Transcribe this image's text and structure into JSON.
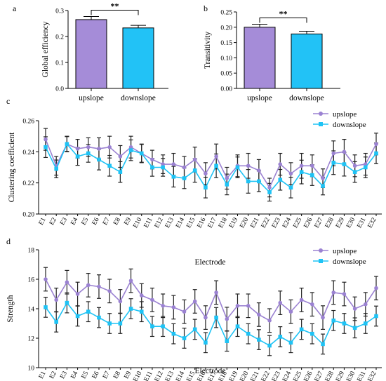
{
  "colors": {
    "upslope": "#9B82D2",
    "downslope": "#1EC3F5",
    "bar_upslope": "#A58CD8",
    "bar_downslope": "#22C2F6",
    "axis": "#000000",
    "error": "#222222"
  },
  "chart_data": [
    {
      "id": "a",
      "panel_label": "a",
      "type": "bar",
      "categories": [
        "upslope",
        "downslope"
      ],
      "values": [
        0.265,
        0.233
      ],
      "errors": [
        0.012,
        0.01
      ],
      "ylabel": "Global efficiency",
      "ylim": [
        0.0,
        0.3
      ],
      "yticks": [
        "0.0",
        "0.1",
        "0.2",
        "0.3"
      ],
      "significance": "**"
    },
    {
      "id": "b",
      "panel_label": "b",
      "type": "bar",
      "categories": [
        "upslope",
        "downslope"
      ],
      "values": [
        0.2,
        0.178
      ],
      "errors": [
        0.01,
        0.009
      ],
      "ylabel": "Transitivity",
      "ylim": [
        0.0,
        0.25
      ],
      "yticks": [
        "0.00",
        "0.05",
        "0.10",
        "0.15",
        "0.20",
        "0.25"
      ],
      "significance": "**"
    },
    {
      "id": "c",
      "panel_label": "c",
      "type": "line",
      "x": [
        "E1",
        "E2",
        "E3",
        "E4",
        "E5",
        "E6",
        "E7",
        "E8",
        "E9",
        "E10",
        "E11",
        "E12",
        "E13",
        "E14",
        "E15",
        "E16",
        "E17",
        "E18",
        "E19",
        "E20",
        "E21",
        "E22",
        "E23",
        "E24",
        "E25",
        "E26",
        "E27",
        "E28",
        "E29",
        "E30",
        "E31",
        "E32"
      ],
      "xlabel": "Electrode",
      "ylabel": "Clustering coefficient",
      "ylim": [
        0.2,
        0.26
      ],
      "yticks": [
        "0.20",
        "0.22",
        "0.24",
        "0.26"
      ],
      "legend": "top-right",
      "series": [
        {
          "name": "upslope",
          "values": [
            0.248,
            0.231,
            0.245,
            0.242,
            0.243,
            0.242,
            0.243,
            0.237,
            0.243,
            0.239,
            0.235,
            0.232,
            0.232,
            0.23,
            0.235,
            0.226,
            0.237,
            0.223,
            0.231,
            0.231,
            0.228,
            0.217,
            0.232,
            0.226,
            0.231,
            0.231,
            0.223,
            0.239,
            0.24,
            0.231,
            0.232,
            0.245
          ],
          "errors": [
            0.007,
            0.006,
            0.005,
            0.006,
            0.006,
            0.007,
            0.007,
            0.007,
            0.007,
            0.006,
            0.006,
            0.006,
            0.007,
            0.007,
            0.008,
            0.007,
            0.008,
            0.007,
            0.007,
            0.008,
            0.007,
            0.006,
            0.007,
            0.007,
            0.008,
            0.007,
            0.006,
            0.008,
            0.008,
            0.007,
            0.007,
            0.007
          ]
        },
        {
          "name": "downslope",
          "values": [
            0.243,
            0.229,
            0.245,
            0.237,
            0.239,
            0.235,
            0.231,
            0.227,
            0.241,
            0.239,
            0.23,
            0.23,
            0.224,
            0.223,
            0.228,
            0.217,
            0.231,
            0.219,
            0.23,
            0.221,
            0.221,
            0.214,
            0.222,
            0.217,
            0.227,
            0.225,
            0.218,
            0.233,
            0.232,
            0.227,
            0.23,
            0.239
          ]
        }
      ]
    },
    {
      "id": "d",
      "panel_label": "d",
      "type": "line",
      "x": [
        "E1",
        "E2",
        "E3",
        "E4",
        "E5",
        "E6",
        "E7",
        "E8",
        "E9",
        "E10",
        "E11",
        "E12",
        "E13",
        "E14",
        "E15",
        "E16",
        "E17",
        "E18",
        "E19",
        "E20",
        "E21",
        "E22",
        "E23",
        "E24",
        "E25",
        "E26",
        "E27",
        "E28",
        "E29",
        "E30",
        "E31",
        "E32"
      ],
      "xlabel": "Electrode",
      "ylabel": "Strength",
      "ylim": [
        10,
        18
      ],
      "yticks": [
        "10",
        "12",
        "14",
        "16",
        "18"
      ],
      "legend": "top-right",
      "series": [
        {
          "name": "upslope",
          "values": [
            16.0,
            14.6,
            15.8,
            15.0,
            15.6,
            15.5,
            15.2,
            14.5,
            15.9,
            14.9,
            14.6,
            14.2,
            14.1,
            13.8,
            14.5,
            13.4,
            15.1,
            13.3,
            14.2,
            14.2,
            13.6,
            13.2,
            14.4,
            13.8,
            14.6,
            14.3,
            13.4,
            15.1,
            15.0,
            14.0,
            14.3,
            15.4
          ]
        },
        {
          "name": "downslope",
          "values": [
            14.1,
            13.1,
            14.4,
            13.5,
            13.8,
            13.4,
            13.0,
            13.0,
            14.0,
            13.8,
            12.8,
            12.8,
            12.3,
            12.0,
            12.6,
            11.7,
            13.4,
            11.8,
            12.8,
            12.3,
            11.9,
            11.5,
            12.1,
            11.7,
            12.6,
            12.3,
            11.6,
            13.2,
            13.0,
            12.7,
            13.0,
            13.5
          ]
        }
      ]
    }
  ]
}
